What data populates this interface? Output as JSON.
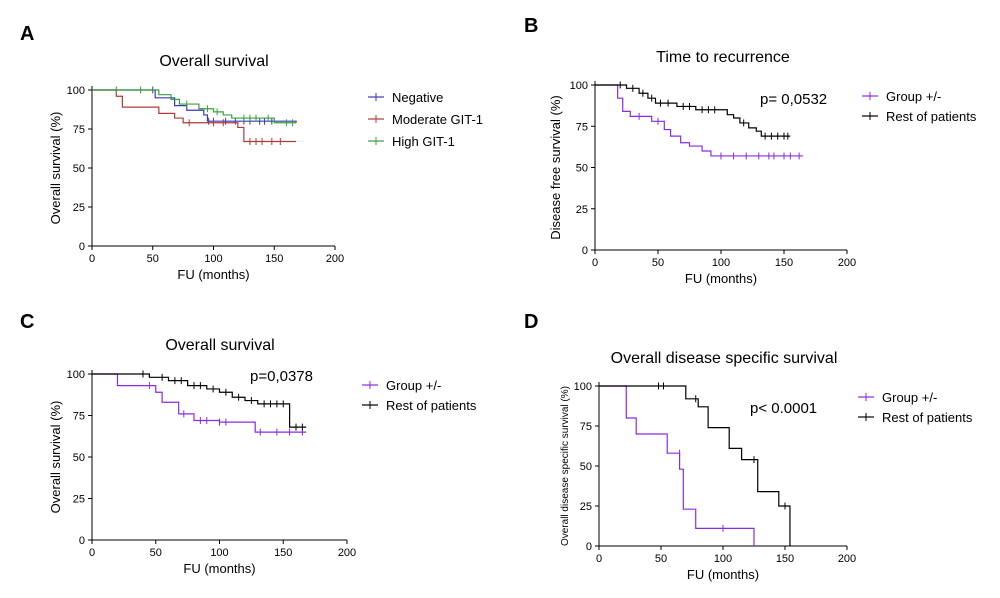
{
  "chart_data": [
    {
      "panel": "A",
      "type": "line",
      "subtype": "kaplan-meier",
      "title": "Overall survival",
      "xlabel": "FU (months)",
      "ylabel": "Overall survival (%)",
      "xlim": [
        0,
        200
      ],
      "ylim": [
        0,
        100
      ],
      "xticks": [
        0,
        50,
        100,
        150,
        200
      ],
      "yticks": [
        0,
        25,
        50,
        75,
        100
      ],
      "annotation": "",
      "legend_position": "right",
      "series": [
        {
          "name": "Negative",
          "color": "#3a3ab5",
          "steps": [
            [
              0,
              100
            ],
            [
              42,
              100
            ],
            [
              52,
              95
            ],
            [
              68,
              90
            ],
            [
              78,
              87
            ],
            [
              92,
              84
            ],
            [
              95,
              80
            ],
            [
              120,
              80
            ],
            [
              150,
              80
            ],
            [
              168,
              79
            ]
          ],
          "censored": [
            [
              50,
              100
            ],
            [
              96,
              80
            ],
            [
              100,
              80
            ],
            [
              110,
              80
            ],
            [
              118,
              80
            ],
            [
              125,
              80
            ],
            [
              130,
              80
            ],
            [
              138,
              80
            ],
            [
              142,
              80
            ],
            [
              148,
              80
            ]
          ]
        },
        {
          "name": "Moderate GIT-1",
          "color": "#b03a3a",
          "steps": [
            [
              0,
              100
            ],
            [
              20,
              96
            ],
            [
              25,
              89
            ],
            [
              48,
              89
            ],
            [
              55,
              85
            ],
            [
              68,
              82
            ],
            [
              75,
              79
            ],
            [
              95,
              79
            ],
            [
              120,
              76
            ],
            [
              125,
              67
            ],
            [
              168,
              67
            ]
          ],
          "censored": [
            [
              80,
              79
            ],
            [
              100,
              79
            ],
            [
              108,
              79
            ],
            [
              130,
              67
            ],
            [
              135,
              67
            ],
            [
              140,
              67
            ],
            [
              148,
              67
            ],
            [
              155,
              67
            ]
          ]
        },
        {
          "name": "High GIT-1",
          "color": "#3aa03a",
          "steps": [
            [
              0,
              100
            ],
            [
              50,
              100
            ],
            [
              55,
              97
            ],
            [
              65,
              94
            ],
            [
              72,
              91
            ],
            [
              88,
              88
            ],
            [
              100,
              86
            ],
            [
              108,
              84
            ],
            [
              115,
              82
            ],
            [
              150,
              79
            ],
            [
              168,
              79
            ]
          ],
          "censored": [
            [
              20,
              100
            ],
            [
              40,
              100
            ],
            [
              78,
              91
            ],
            [
              95,
              88
            ],
            [
              103,
              86
            ],
            [
              125,
              82
            ],
            [
              130,
              82
            ],
            [
              135,
              82
            ],
            [
              145,
              82
            ],
            [
              160,
              79
            ],
            [
              165,
              79
            ]
          ]
        }
      ]
    },
    {
      "panel": "B",
      "type": "line",
      "subtype": "kaplan-meier",
      "title": "Time to recurrence",
      "xlabel": "FU (months)",
      "ylabel": "Disease free survival (%)",
      "xlim": [
        0,
        200
      ],
      "ylim": [
        0,
        100
      ],
      "xticks": [
        0,
        50,
        100,
        150,
        200
      ],
      "yticks": [
        0,
        25,
        50,
        75,
        100
      ],
      "annotation": "p= 0,0532",
      "legend_position": "right",
      "series": [
        {
          "name": "Group +/-",
          "color": "#8a2be2",
          "steps": [
            [
              0,
              100
            ],
            [
              18,
              92
            ],
            [
              22,
              84
            ],
            [
              28,
              81
            ],
            [
              45,
              78
            ],
            [
              55,
              73
            ],
            [
              60,
              69
            ],
            [
              68,
              65
            ],
            [
              75,
              63
            ],
            [
              85,
              60
            ],
            [
              92,
              57
            ],
            [
              165,
              57
            ]
          ],
          "censored": [
            [
              35,
              81
            ],
            [
              50,
              78
            ],
            [
              100,
              57
            ],
            [
              110,
              57
            ],
            [
              120,
              57
            ],
            [
              130,
              57
            ],
            [
              138,
              57
            ],
            [
              142,
              57
            ],
            [
              150,
              57
            ],
            [
              155,
              57
            ],
            [
              162,
              57
            ]
          ]
        },
        {
          "name": "Rest of patients",
          "color": "#000000",
          "steps": [
            [
              0,
              100
            ],
            [
              25,
              98
            ],
            [
              35,
              95
            ],
            [
              42,
              92
            ],
            [
              48,
              89
            ],
            [
              65,
              87
            ],
            [
              80,
              85
            ],
            [
              98,
              85
            ],
            [
              105,
              82
            ],
            [
              110,
              80
            ],
            [
              115,
              77
            ],
            [
              122,
              74
            ],
            [
              128,
              72
            ],
            [
              132,
              69
            ],
            [
              155,
              69
            ]
          ],
          "censored": [
            [
              20,
              100
            ],
            [
              30,
              98
            ],
            [
              38,
              95
            ],
            [
              45,
              92
            ],
            [
              52,
              89
            ],
            [
              58,
              89
            ],
            [
              70,
              87
            ],
            [
              75,
              87
            ],
            [
              85,
              85
            ],
            [
              90,
              85
            ],
            [
              95,
              85
            ],
            [
              118,
              77
            ],
            [
              135,
              69
            ],
            [
              140,
              69
            ],
            [
              145,
              69
            ],
            [
              150,
              69
            ],
            [
              153,
              69
            ]
          ]
        }
      ]
    },
    {
      "panel": "C",
      "type": "line",
      "subtype": "kaplan-meier",
      "title": "Overall survival",
      "xlabel": "FU (months)",
      "ylabel": "Overall survival (%)",
      "xlim": [
        0,
        200
      ],
      "ylim": [
        0,
        100
      ],
      "xticks": [
        0,
        50,
        100,
        150,
        200
      ],
      "yticks": [
        0,
        25,
        50,
        75,
        100
      ],
      "annotation": "p=0,0378",
      "legend_position": "right",
      "series": [
        {
          "name": "Group +/-",
          "color": "#8a2be2",
          "steps": [
            [
              0,
              100
            ],
            [
              20,
              93
            ],
            [
              50,
              89
            ],
            [
              55,
              83
            ],
            [
              68,
              76
            ],
            [
              80,
              72
            ],
            [
              100,
              71
            ],
            [
              118,
              71
            ],
            [
              128,
              65
            ],
            [
              168,
              65
            ]
          ],
          "censored": [
            [
              45,
              93
            ],
            [
              72,
              76
            ],
            [
              85,
              72
            ],
            [
              90,
              72
            ],
            [
              100,
              71
            ],
            [
              105,
              71
            ],
            [
              132,
              65
            ],
            [
              145,
              65
            ],
            [
              155,
              65
            ],
            [
              165,
              65
            ]
          ]
        },
        {
          "name": "Rest of patients",
          "color": "#000000",
          "steps": [
            [
              0,
              100
            ],
            [
              45,
              98
            ],
            [
              60,
              96
            ],
            [
              75,
              93
            ],
            [
              90,
              91
            ],
            [
              100,
              89
            ],
            [
              110,
              86
            ],
            [
              120,
              84
            ],
            [
              130,
              82
            ],
            [
              155,
              68
            ],
            [
              168,
              68
            ]
          ],
          "censored": [
            [
              40,
              100
            ],
            [
              55,
              98
            ],
            [
              65,
              96
            ],
            [
              70,
              96
            ],
            [
              80,
              93
            ],
            [
              85,
              93
            ],
            [
              95,
              91
            ],
            [
              105,
              89
            ],
            [
              115,
              86
            ],
            [
              125,
              84
            ],
            [
              135,
              82
            ],
            [
              140,
              82
            ],
            [
              145,
              82
            ],
            [
              150,
              82
            ],
            [
              160,
              68
            ],
            [
              165,
              68
            ]
          ]
        }
      ]
    },
    {
      "panel": "D",
      "type": "line",
      "subtype": "kaplan-meier",
      "title": "Overall disease specific survival",
      "xlabel": "FU (months)",
      "ylabel": "Overall disease specific survival (%)",
      "xlim": [
        0,
        200
      ],
      "ylim": [
        0,
        100
      ],
      "xticks": [
        0,
        50,
        100,
        150,
        200
      ],
      "yticks": [
        0,
        25,
        50,
        75,
        100
      ],
      "annotation": "p< 0.0001",
      "legend_position": "right",
      "series": [
        {
          "name": "Group +/-",
          "color": "#8a2be2",
          "steps": [
            [
              0,
              100
            ],
            [
              22,
              100
            ],
            [
              22,
              80
            ],
            [
              30,
              70
            ],
            [
              55,
              58
            ],
            [
              65,
              48
            ],
            [
              68,
              23
            ],
            [
              78,
              11
            ],
            [
              125,
              11
            ],
            [
              125,
              0
            ]
          ],
          "censored": [
            [
              65,
              58
            ],
            [
              100,
              11
            ]
          ]
        },
        {
          "name": "Rest of patients",
          "color": "#000000",
          "steps": [
            [
              0,
              100
            ],
            [
              60,
              100
            ],
            [
              70,
              92
            ],
            [
              80,
              87
            ],
            [
              88,
              74
            ],
            [
              105,
              61
            ],
            [
              115,
              54
            ],
            [
              128,
              34
            ],
            [
              145,
              25
            ],
            [
              154,
              25
            ],
            [
              154,
              0
            ]
          ],
          "censored": [
            [
              48,
              100
            ],
            [
              52,
              100
            ],
            [
              78,
              92
            ],
            [
              125,
              54
            ],
            [
              150,
              25
            ]
          ]
        }
      ]
    }
  ]
}
